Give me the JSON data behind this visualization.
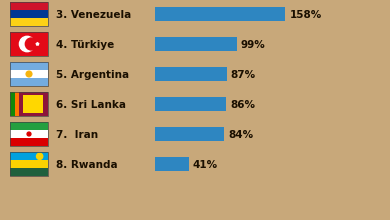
{
  "countries": [
    "3. Venezuela",
    "4. Türkiye",
    "5. Argentina",
    "6. Sri Lanka",
    "7.  Iran",
    "8. Rwanda"
  ],
  "values": [
    158,
    99,
    87,
    86,
    84,
    41
  ],
  "bar_color": "#2e86c1",
  "background_color": "#c8a87a",
  "text_color": "#1a0f00",
  "pct_labels": [
    "158%",
    "99%",
    "87%",
    "86%",
    "84%",
    "41%"
  ],
  "max_value": 200,
  "figw": 3.9,
  "figh": 2.2,
  "dpi": 100
}
